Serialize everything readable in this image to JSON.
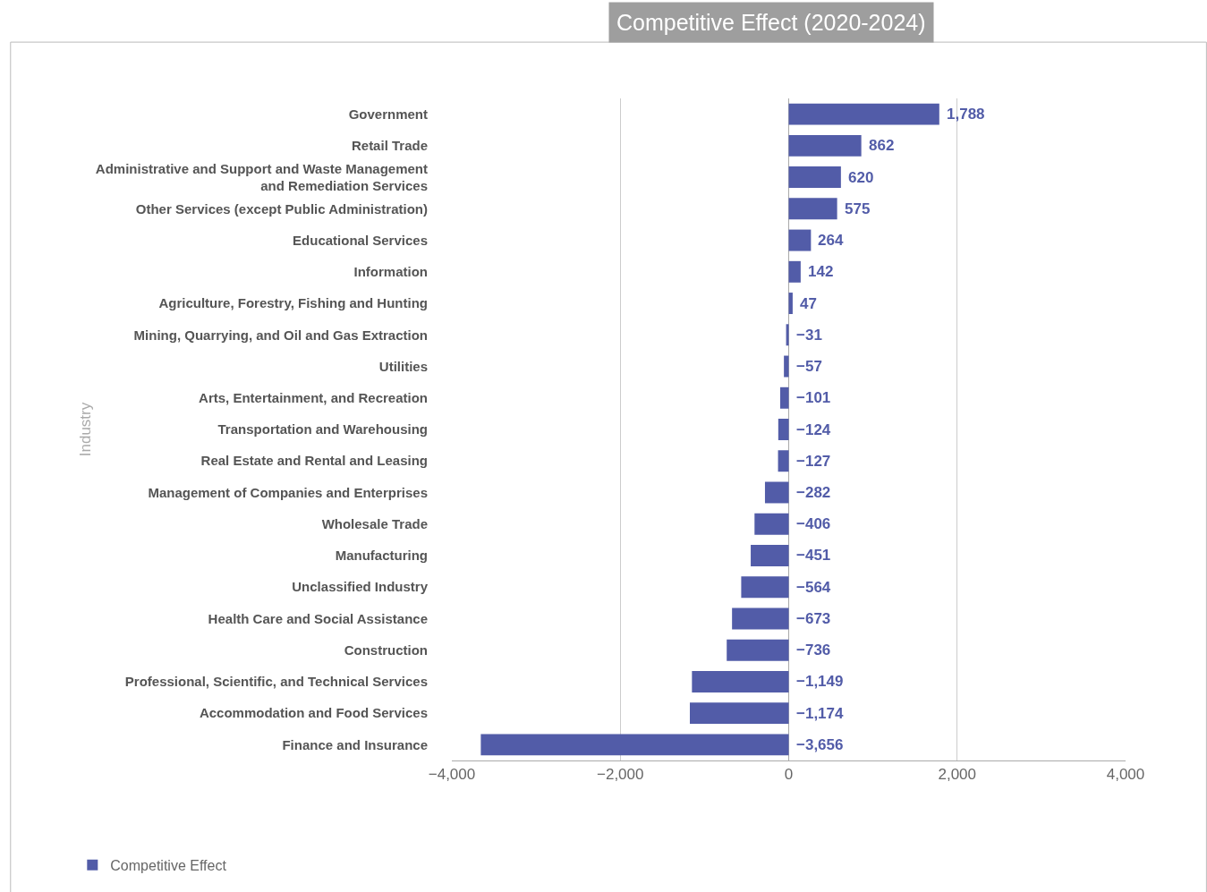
{
  "chart_data": {
    "type": "bar",
    "orientation": "horizontal",
    "title": "Competitive Effect (2020-2024)",
    "ylabel": "Industry",
    "categories": [
      "Government",
      "Retail Trade",
      "Administrative and Support and Waste Management and Remediation Services",
      "Other Services (except Public Administration)",
      "Educational Services",
      "Information",
      "Agriculture, Forestry, Fishing and Hunting",
      "Mining, Quarrying, and Oil and Gas Extraction",
      "Utilities",
      "Arts, Entertainment, and Recreation",
      "Transportation and Warehousing",
      "Real Estate and Rental and Leasing",
      "Management of Companies and Enterprises",
      "Wholesale Trade",
      "Manufacturing",
      "Unclassified Industry",
      "Health Care and Social Assistance",
      "Construction",
      "Professional, Scientific, and Technical Services",
      "Accommodation and Food Services",
      "Finance and Insurance"
    ],
    "series": [
      {
        "name": "Competitive Effect",
        "color": "#525ca8",
        "values": [
          1788,
          862,
          620,
          575,
          264,
          142,
          47,
          -31,
          -57,
          -101,
          -124,
          -127,
          -282,
          -406,
          -451,
          -564,
          -673,
          -736,
          -1149,
          -1174,
          -3656
        ],
        "value_labels": [
          "1,788",
          "862",
          "620",
          "575",
          "264",
          "142",
          "47",
          "−31",
          "−57",
          "−101",
          "−124",
          "−127",
          "−282",
          "−406",
          "−451",
          "−564",
          "−673",
          "−736",
          "−1,149",
          "−1,174",
          "−3,656"
        ]
      }
    ],
    "xlim": [
      -4000,
      4000
    ],
    "xticks": [
      {
        "value": -4000,
        "label": "−4,000"
      },
      {
        "value": -2000,
        "label": "−2,000"
      },
      0,
      {
        "value": 2000,
        "label": "2,000"
      },
      {
        "value": 4000,
        "label": "4,000"
      }
    ],
    "grid": "x",
    "legend": "bottom left"
  }
}
